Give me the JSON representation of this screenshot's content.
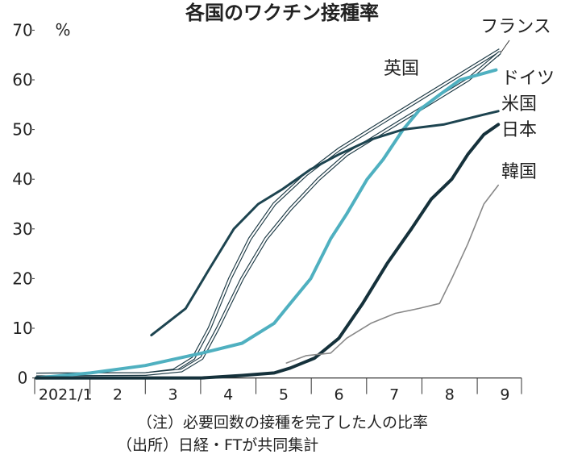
{
  "chart_data": {
    "type": "line",
    "title": "各国のワクチン接種率",
    "y_unit": "%",
    "xlim": [
      1,
      9.8
    ],
    "xticks": [
      {
        "value": 1,
        "label": "2021/1"
      },
      2,
      3,
      4,
      5,
      6,
      7,
      8,
      9
    ],
    "ylim": [
      0,
      70
    ],
    "yticks": [
      0,
      10,
      20,
      30,
      40,
      50,
      60,
      70
    ],
    "series": [
      {
        "name": "英国",
        "color": "#1d3a45",
        "style": "double",
        "x": [
          1.03,
          3.0,
          3.51,
          3.87,
          4.16,
          4.53,
          4.89,
          5.33,
          5.91,
          6.5,
          7.22,
          7.95,
          8.68,
          9.41
        ],
        "values": [
          0.7,
          0.8,
          1.5,
          4,
          10,
          20,
          28,
          35,
          41,
          46,
          51,
          56,
          61,
          66
        ]
      },
      {
        "name": "フランス",
        "color": "#1d3a45",
        "style": "double",
        "x": [
          1.03,
          3.0,
          3.65,
          4.02,
          4.31,
          4.75,
          5.18,
          5.62,
          6.13,
          6.64,
          7.37,
          8.1,
          8.83,
          9.41
        ],
        "values": [
          0.7,
          0.8,
          1.5,
          4,
          10,
          20,
          28,
          34,
          40,
          45,
          50,
          55,
          60,
          65.5
        ]
      },
      {
        "name": "ドイツ",
        "color": "#4fb0c0",
        "style": "thick",
        "x": [
          1.03,
          2.01,
          3.0,
          4.02,
          4.75,
          5.33,
          5.62,
          5.99,
          6.35,
          6.64,
          7.01,
          7.3,
          7.66,
          7.96,
          8.32,
          8.69,
          9.34
        ],
        "values": [
          0,
          1,
          2.5,
          5,
          7,
          11,
          15,
          20,
          28,
          33,
          40,
          44,
          50,
          54,
          57,
          60,
          62
        ]
      },
      {
        "name": "米国",
        "color": "#1d4450",
        "style": "medium",
        "x": [
          3.11,
          3.73,
          4.16,
          4.6,
          5.04,
          5.48,
          5.99,
          6.5,
          7.08,
          7.66,
          8.39,
          9.12,
          9.38
        ],
        "values": [
          8.6,
          14,
          22,
          30,
          35,
          38,
          42,
          45,
          48,
          50,
          51,
          53,
          53.7
        ]
      },
      {
        "name": "日本",
        "color": "#15313b",
        "style": "thick",
        "x": [
          1.03,
          4.02,
          4.75,
          5.33,
          5.62,
          6.06,
          6.5,
          6.93,
          7.37,
          7.81,
          8.17,
          8.54,
          8.83,
          9.12,
          9.38
        ],
        "values": [
          0,
          0,
          0.5,
          1,
          2,
          4,
          8,
          15,
          23,
          30,
          36,
          40,
          45,
          49,
          51
        ]
      },
      {
        "name": "韓国",
        "color": "#888888",
        "style": "thin",
        "x": [
          5.55,
          5.91,
          6.35,
          6.64,
          7.08,
          7.52,
          7.95,
          8.32,
          8.54,
          8.83,
          9.12,
          9.38
        ],
        "values": [
          3,
          4.5,
          5,
          8,
          11,
          13,
          14,
          15,
          20,
          27,
          35,
          38.8
        ]
      }
    ],
    "notes": [
      "（注）必要回数の接種を完了した人の比率",
      "（出所）日経・FTが共同集計"
    ]
  }
}
